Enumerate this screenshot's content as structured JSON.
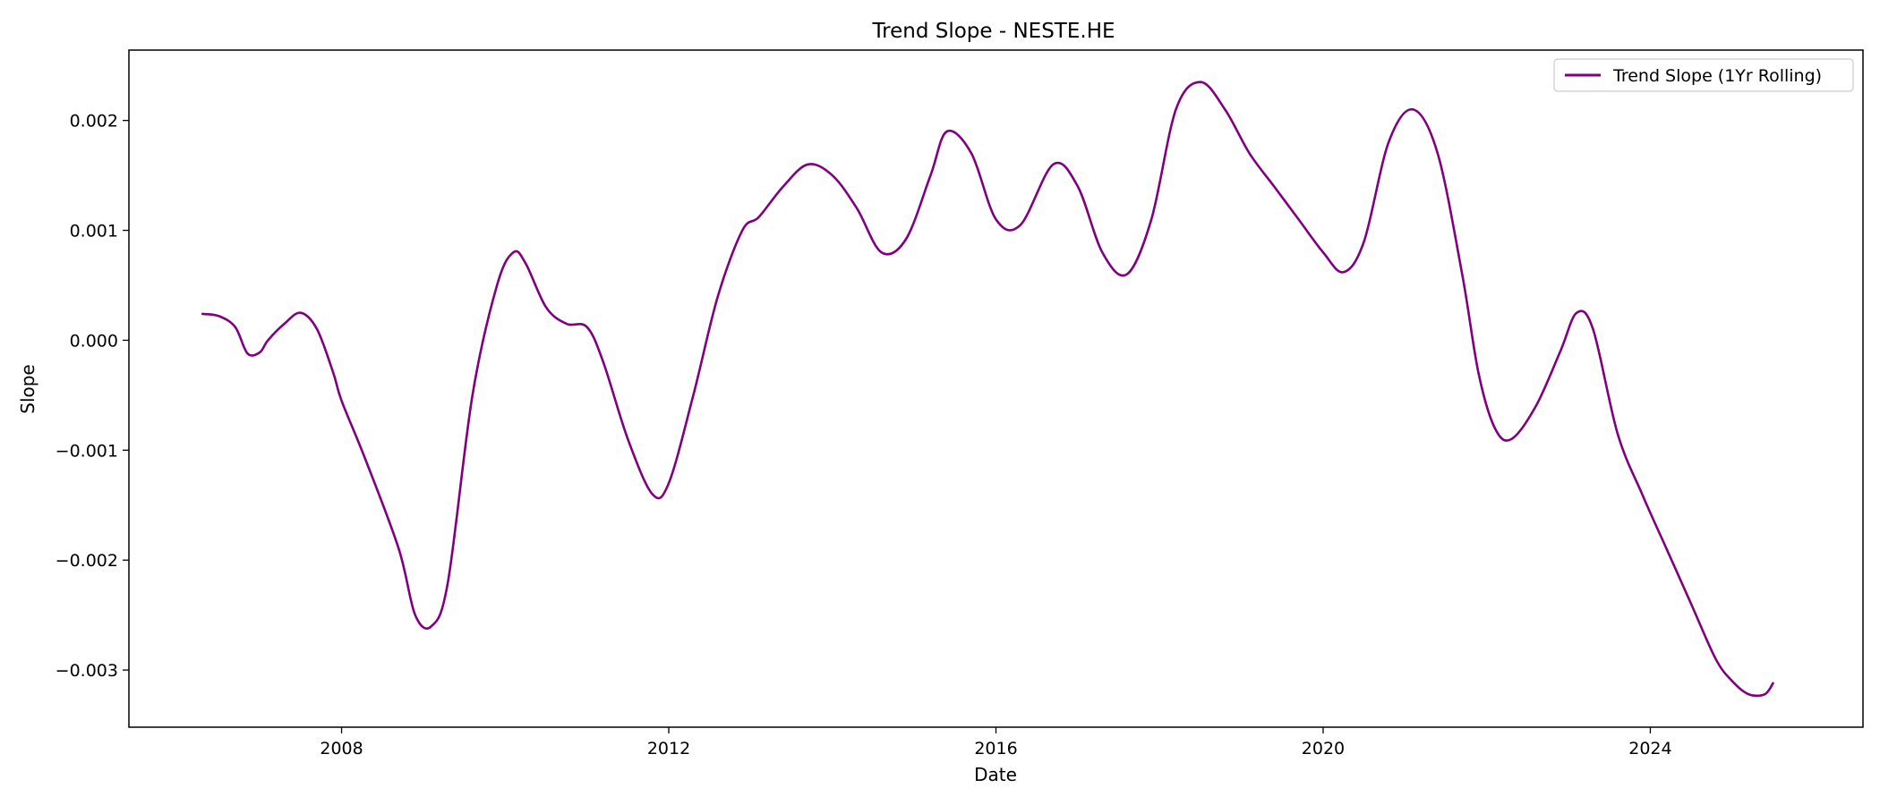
{
  "chart_data": {
    "type": "line",
    "title": "Trend Slope - NESTE.HE",
    "xlabel": "Date",
    "ylabel": "Slope",
    "xlim": [
      2005.4,
      2026.6
    ],
    "ylim": [
      -0.00352,
      0.00264
    ],
    "x_ticks": [
      2008,
      2012,
      2016,
      2020,
      2024
    ],
    "x_tick_labels": [
      "2008",
      "2012",
      "2016",
      "2020",
      "2024"
    ],
    "y_ticks": [
      0.002,
      0.001,
      0.0,
      -0.001,
      -0.002,
      -0.003
    ],
    "y_tick_labels": [
      "0.002",
      "0.001",
      "0.000",
      "−0.001",
      "−0.002",
      "−0.003"
    ],
    "grid": false,
    "legend_position": "top-right",
    "colors": {
      "series": "#800080",
      "axes": "#000000",
      "legend_border": "#cccccc"
    },
    "series": [
      {
        "name": "Trend Slope (1Yr Rolling)",
        "x": [
          2006.3,
          2006.5,
          2006.7,
          2006.85,
          2007.0,
          2007.1,
          2007.3,
          2007.5,
          2007.7,
          2007.9,
          2008.0,
          2008.3,
          2008.7,
          2008.9,
          2009.1,
          2009.3,
          2009.6,
          2009.9,
          2010.1,
          2010.25,
          2010.5,
          2010.75,
          2011.0,
          2011.2,
          2011.5,
          2011.8,
          2012.0,
          2012.3,
          2012.6,
          2012.9,
          2013.1,
          2013.4,
          2013.7,
          2014.0,
          2014.3,
          2014.6,
          2014.9,
          2015.2,
          2015.4,
          2015.7,
          2016.0,
          2016.3,
          2016.7,
          2017.0,
          2017.3,
          2017.6,
          2017.9,
          2018.2,
          2018.5,
          2018.8,
          2019.1,
          2019.4,
          2019.7,
          2020.0,
          2020.25,
          2020.5,
          2020.8,
          2021.1,
          2021.4,
          2021.7,
          2021.9,
          2022.1,
          2022.3,
          2022.6,
          2022.9,
          2023.1,
          2023.3,
          2023.6,
          2023.9,
          2024.2,
          2024.5,
          2024.8,
          2025.0,
          2025.2,
          2025.4,
          2025.5
        ],
        "values": [
          0.00024,
          0.00022,
          0.00012,
          -0.00012,
          -0.00011,
          0.0,
          0.00015,
          0.00025,
          0.0001,
          -0.0003,
          -0.00055,
          -0.0011,
          -0.0019,
          -0.0025,
          -0.0026,
          -0.0022,
          -0.0005,
          0.0005,
          0.0008,
          0.0007,
          0.0003,
          0.00015,
          0.00012,
          -0.0002,
          -0.0009,
          -0.0014,
          -0.0013,
          -0.0005,
          0.0004,
          0.001,
          0.00112,
          0.0014,
          0.0016,
          0.0015,
          0.0012,
          0.0008,
          0.00092,
          0.0015,
          0.0019,
          0.0017,
          0.0011,
          0.00105,
          0.0016,
          0.0014,
          0.0008,
          0.0006,
          0.0011,
          0.0021,
          0.00235,
          0.0021,
          0.0017,
          0.0014,
          0.0011,
          0.0008,
          0.00062,
          0.0009,
          0.0018,
          0.0021,
          0.0017,
          0.0006,
          -0.0003,
          -0.0008,
          -0.0009,
          -0.0006,
          -0.0001,
          0.00025,
          0.0001,
          -0.00085,
          -0.0014,
          -0.0019,
          -0.0024,
          -0.0029,
          -0.0031,
          -0.00322,
          -0.00322,
          -0.00312
        ]
      }
    ]
  }
}
